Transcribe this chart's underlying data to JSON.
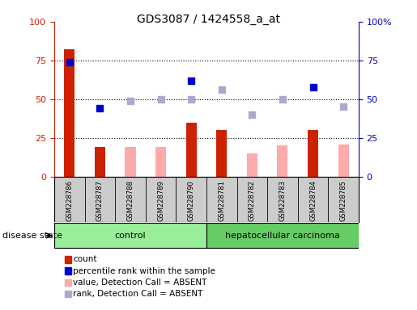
{
  "title": "GDS3087 / 1424558_a_at",
  "samples": [
    "GSM228786",
    "GSM228787",
    "GSM228788",
    "GSM228789",
    "GSM228790",
    "GSM228781",
    "GSM228782",
    "GSM228783",
    "GSM228784",
    "GSM228785"
  ],
  "count": [
    82,
    19,
    null,
    null,
    35,
    30,
    null,
    null,
    30,
    null
  ],
  "count_absent": [
    null,
    null,
    19,
    19,
    null,
    null,
    15,
    20,
    null,
    21
  ],
  "percentile_rank": [
    74,
    44,
    null,
    null,
    62,
    null,
    null,
    null,
    58,
    null
  ],
  "rank_absent": [
    null,
    null,
    49,
    50,
    50,
    56,
    40,
    50,
    null,
    45
  ],
  "count_color": "#cc2200",
  "count_absent_color": "#ffaaaa",
  "percentile_color": "#0000cc",
  "rank_absent_color": "#aaaacc",
  "control_color": "#99ee99",
  "cancer_color": "#66cc66",
  "bg_color": "#cccccc",
  "grid_dotted_vals": [
    25,
    50,
    75
  ],
  "legend_labels": [
    "count",
    "percentile rank within the sample",
    "value, Detection Call = ABSENT",
    "rank, Detection Call = ABSENT"
  ],
  "disease_state_label": "disease state",
  "control_label": "control",
  "cancer_label": "hepatocellular carcinoma"
}
